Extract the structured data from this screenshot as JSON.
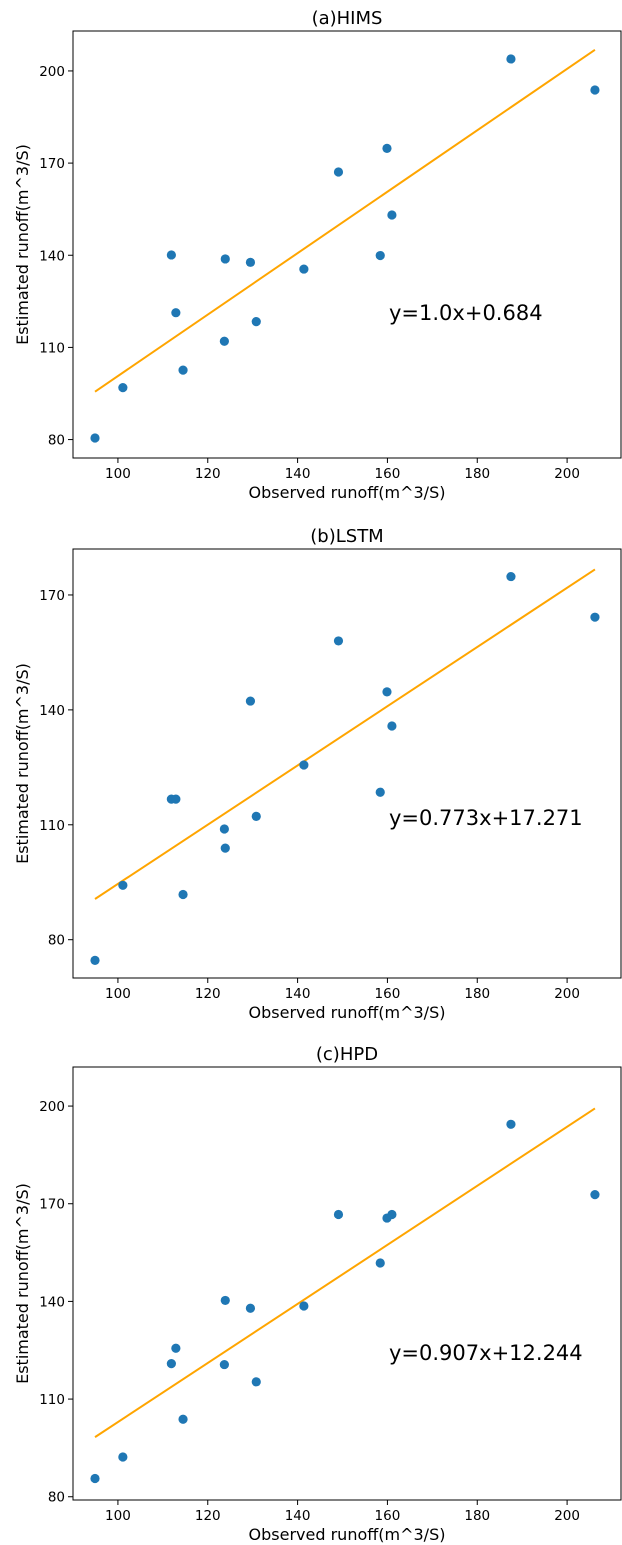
{
  "colors": {
    "points": "#1f77b4",
    "fit_line": "#ffa500",
    "frame": "#000000"
  },
  "chart_data": [
    {
      "type": "scatter",
      "title": "(a)HIMS",
      "xlabel": "Observed runoff(m^3/S)",
      "ylabel": "Estimated runoff(m^3/S)",
      "xlim": [
        90,
        212
      ],
      "ylim": [
        74,
        213
      ],
      "xticks": [
        100,
        120,
        140,
        160,
        180,
        200
      ],
      "yticks": [
        80,
        110,
        140,
        170,
        200
      ],
      "x": [
        94.9,
        101.1,
        111.9,
        112.9,
        114.5,
        123.7,
        123.9,
        129.5,
        130.8,
        141.4,
        149.1,
        158.4,
        159.9,
        161.0,
        187.5,
        206.2
      ],
      "y": [
        80.5,
        96.9,
        140.1,
        121.3,
        102.6,
        112.0,
        138.8,
        137.7,
        118.4,
        135.5,
        167.1,
        139.9,
        174.8,
        153.1,
        203.9,
        193.8
      ],
      "fit": {
        "slope": 1.0,
        "intercept": 0.684,
        "x_range": [
          94.9,
          206.2
        ],
        "label": "y=1.0x+0.684"
      }
    },
    {
      "type": "scatter",
      "title": "(b)LSTM",
      "xlabel": "Observed runoff(m^3/S)",
      "ylabel": "Estimated runoff(m^3/S)",
      "xlim": [
        90,
        212
      ],
      "ylim": [
        70,
        182
      ],
      "xticks": [
        100,
        120,
        140,
        160,
        180,
        200
      ],
      "yticks": [
        80,
        110,
        140,
        170
      ],
      "x": [
        94.9,
        101.1,
        111.9,
        112.9,
        114.5,
        123.7,
        123.9,
        129.5,
        130.8,
        141.4,
        149.1,
        158.4,
        159.9,
        161.0,
        187.5,
        206.2
      ],
      "y": [
        74.6,
        94.2,
        116.7,
        116.7,
        91.8,
        108.9,
        103.9,
        142.3,
        112.2,
        125.6,
        158.0,
        118.5,
        144.7,
        135.8,
        174.8,
        164.2
      ],
      "fit": {
        "slope": 0.773,
        "intercept": 17.271,
        "x_range": [
          94.9,
          206.2
        ],
        "label": "y=0.773x+17.271"
      }
    },
    {
      "type": "scatter",
      "title": "(c)HPD",
      "xlabel": "Observed runoff(m^3/S)",
      "ylabel": "Estimated runoff(m^3/S)",
      "xlim": [
        90,
        212
      ],
      "ylim": [
        79,
        212
      ],
      "xticks": [
        100,
        120,
        140,
        160,
        180,
        200
      ],
      "yticks": [
        80,
        110,
        140,
        170,
        200
      ],
      "x": [
        94.9,
        101.1,
        111.9,
        112.9,
        114.5,
        123.7,
        123.9,
        129.5,
        130.8,
        141.4,
        149.1,
        158.4,
        159.9,
        161.0,
        187.5,
        206.2
      ],
      "y": [
        85.6,
        92.2,
        120.9,
        125.6,
        103.8,
        120.6,
        140.3,
        137.9,
        115.3,
        138.6,
        166.7,
        151.8,
        165.6,
        166.7,
        194.4,
        172.8
      ],
      "fit": {
        "slope": 0.907,
        "intercept": 12.244,
        "x_range": [
          94.9,
          206.2
        ],
        "label": "y=0.907x+12.244"
      }
    }
  ]
}
